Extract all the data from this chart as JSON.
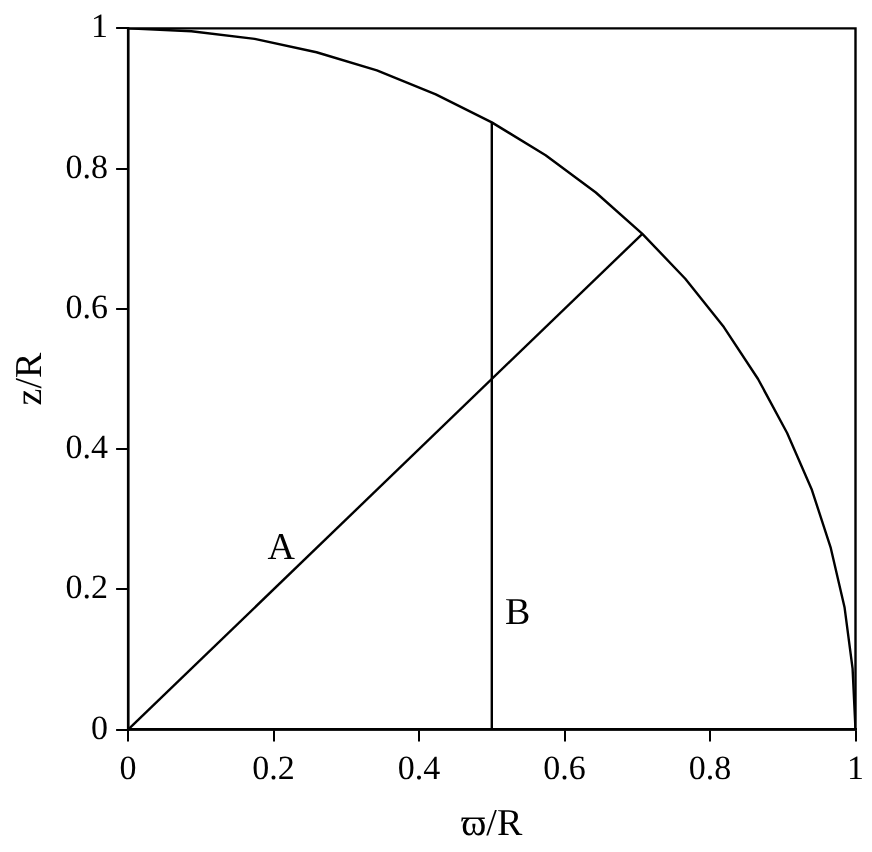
{
  "chart_data": {
    "type": "line",
    "xlabel": "ϖ/R",
    "ylabel": "z/R",
    "xlim": [
      0,
      1
    ],
    "ylim": [
      0,
      1
    ],
    "xticks": [
      0,
      0.2,
      0.4,
      0.6,
      0.8,
      1
    ],
    "yticks": [
      0,
      0.2,
      0.4,
      0.6,
      0.8,
      1
    ],
    "grid": false,
    "legend": false,
    "marker": "none",
    "line_style": "solid",
    "series": [
      {
        "color": "#000000",
        "x": [
          0,
          0.087,
          0.174,
          0.259,
          0.342,
          0.423,
          0.5,
          0.574,
          0.643,
          0.707,
          0.766,
          0.819,
          0.866,
          0.906,
          0.94,
          0.966,
          0.985,
          0.996,
          1
        ],
        "values": [
          1,
          0.996,
          0.985,
          0.966,
          0.94,
          0.906,
          0.866,
          0.819,
          0.766,
          0.707,
          0.643,
          0.574,
          0.5,
          0.423,
          0.342,
          0.259,
          0.174,
          0.087,
          0
        ]
      },
      {
        "name": "A",
        "color": "#000000",
        "x": [
          0,
          0.707
        ],
        "values": [
          0,
          0.707
        ]
      },
      {
        "name": "B",
        "color": "#000000",
        "x": [
          0.5,
          0.5
        ],
        "values": [
          0,
          0.866
        ]
      }
    ]
  }
}
